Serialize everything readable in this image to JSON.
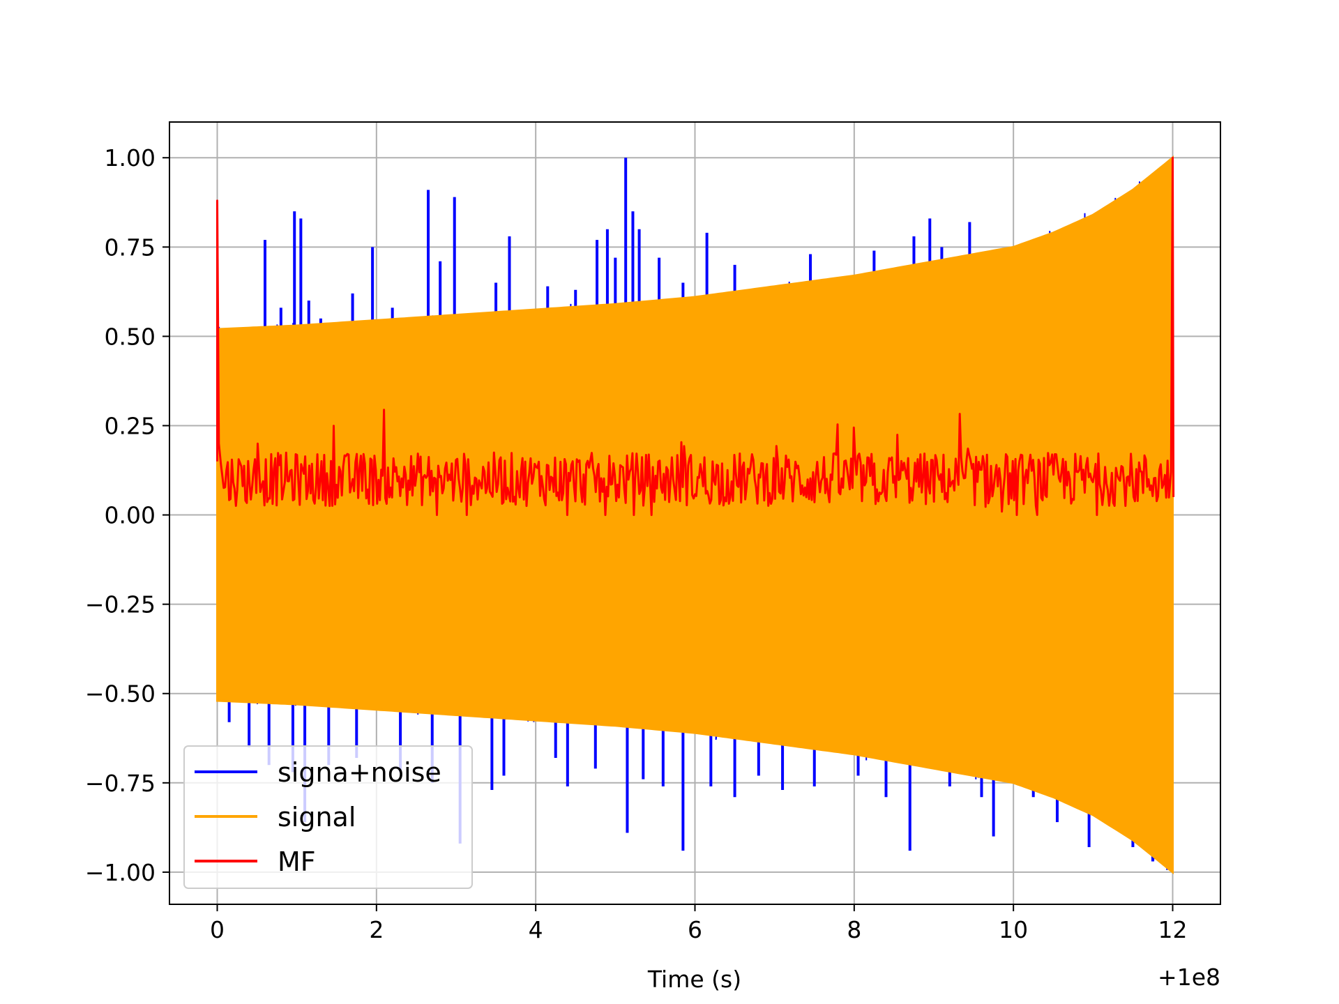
{
  "chart_data": {
    "type": "line",
    "title": "",
    "xlabel": "Time (s)",
    "ylabel": "",
    "x_offset_label": "+1e8",
    "xlim": [
      -0.6,
      12.6
    ],
    "ylim": [
      -1.09,
      1.1
    ],
    "x_ticks": [
      0,
      2,
      4,
      6,
      8,
      10,
      12
    ],
    "x_tick_labels": [
      "0",
      "2",
      "4",
      "6",
      "8",
      "10",
      "12"
    ],
    "y_ticks": [
      1.0,
      0.75,
      0.5,
      0.25,
      0.0,
      -0.25,
      -0.5,
      -0.75,
      -1.0
    ],
    "y_tick_labels": [
      "1.00",
      "0.75",
      "0.50",
      "0.25",
      "0.00",
      "−0.25",
      "−0.50",
      "−0.75",
      "−1.00"
    ],
    "grid": true,
    "legend_position": "lower-left",
    "series": [
      {
        "name": "signa+noise",
        "color": "#0000ff",
        "spikes_up": [
          [
            0.1,
            0.5
          ],
          [
            0.3,
            0.45
          ],
          [
            0.6,
            0.77
          ],
          [
            0.8,
            0.58
          ],
          [
            0.97,
            0.85
          ],
          [
            1.05,
            0.83
          ],
          [
            1.15,
            0.6
          ],
          [
            1.3,
            0.55
          ],
          [
            1.7,
            0.62
          ],
          [
            1.95,
            0.75
          ],
          [
            2.2,
            0.58
          ],
          [
            2.65,
            0.91
          ],
          [
            2.8,
            0.71
          ],
          [
            2.98,
            0.89
          ],
          [
            3.5,
            0.65
          ],
          [
            3.67,
            0.78
          ],
          [
            4.15,
            0.64
          ],
          [
            4.5,
            0.63
          ],
          [
            4.77,
            0.77
          ],
          [
            4.9,
            0.8
          ],
          [
            5.0,
            0.72
          ],
          [
            5.13,
            1.0
          ],
          [
            5.22,
            0.85
          ],
          [
            5.3,
            0.8
          ],
          [
            5.55,
            0.72
          ],
          [
            5.85,
            0.65
          ],
          [
            6.15,
            0.79
          ],
          [
            6.5,
            0.7
          ],
          [
            7.0,
            0.63
          ],
          [
            7.45,
            0.73
          ],
          [
            8.25,
            0.74
          ],
          [
            8.75,
            0.78
          ],
          [
            8.95,
            0.83
          ],
          [
            9.1,
            0.75
          ],
          [
            9.45,
            0.82
          ],
          [
            11.6,
            0.65
          ]
        ],
        "spikes_down": [
          [
            0.15,
            -0.58
          ],
          [
            0.4,
            -0.65
          ],
          [
            0.65,
            -0.7
          ],
          [
            0.95,
            -0.72
          ],
          [
            1.1,
            -0.86
          ],
          [
            1.4,
            -0.7
          ],
          [
            1.75,
            -0.68
          ],
          [
            2.3,
            -0.72
          ],
          [
            2.7,
            -0.75
          ],
          [
            3.05,
            -0.92
          ],
          [
            3.45,
            -0.77
          ],
          [
            3.6,
            -0.73
          ],
          [
            4.25,
            -0.68
          ],
          [
            4.4,
            -0.76
          ],
          [
            4.75,
            -0.71
          ],
          [
            5.15,
            -0.89
          ],
          [
            5.35,
            -0.74
          ],
          [
            5.6,
            -0.76
          ],
          [
            5.85,
            -0.94
          ],
          [
            6.2,
            -0.76
          ],
          [
            6.5,
            -0.79
          ],
          [
            6.8,
            -0.73
          ],
          [
            7.1,
            -0.77
          ],
          [
            7.5,
            -0.76
          ],
          [
            8.05,
            -0.73
          ],
          [
            8.4,
            -0.79
          ],
          [
            8.7,
            -0.94
          ],
          [
            9.2,
            -0.76
          ],
          [
            9.6,
            -0.79
          ],
          [
            9.75,
            -0.9
          ],
          [
            10.25,
            -0.79
          ],
          [
            10.55,
            -0.86
          ],
          [
            10.95,
            -0.93
          ],
          [
            11.3,
            -0.82
          ],
          [
            11.5,
            -0.93
          ],
          [
            11.75,
            -0.97
          ]
        ]
      },
      {
        "name": "signal",
        "color": "#ffa500",
        "envelope_upper": [
          [
            0,
            0.52
          ],
          [
            1,
            0.53
          ],
          [
            2,
            0.545
          ],
          [
            3,
            0.56
          ],
          [
            4,
            0.575
          ],
          [
            5,
            0.59
          ],
          [
            6,
            0.61
          ],
          [
            7,
            0.64
          ],
          [
            8,
            0.67
          ],
          [
            9,
            0.71
          ],
          [
            10,
            0.75
          ],
          [
            10.5,
            0.79
          ],
          [
            11,
            0.84
          ],
          [
            11.5,
            0.91
          ],
          [
            12,
            1.0
          ]
        ],
        "envelope_lower": [
          [
            0,
            -0.52
          ],
          [
            1,
            -0.53
          ],
          [
            2,
            -0.545
          ],
          [
            3,
            -0.56
          ],
          [
            4,
            -0.575
          ],
          [
            5,
            -0.59
          ],
          [
            6,
            -0.61
          ],
          [
            7,
            -0.64
          ],
          [
            8,
            -0.67
          ],
          [
            9,
            -0.71
          ],
          [
            10,
            -0.75
          ],
          [
            10.5,
            -0.79
          ],
          [
            11,
            -0.84
          ],
          [
            11.5,
            -0.91
          ],
          [
            12,
            -1.0
          ]
        ]
      },
      {
        "name": "MF",
        "color": "#ff0000",
        "start_peak": [
          0.0,
          0.88
        ],
        "end_peak": [
          12.0,
          1.0
        ],
        "baseline_mean": 0.1,
        "baseline_range": [
          0.0,
          0.34
        ]
      }
    ]
  }
}
